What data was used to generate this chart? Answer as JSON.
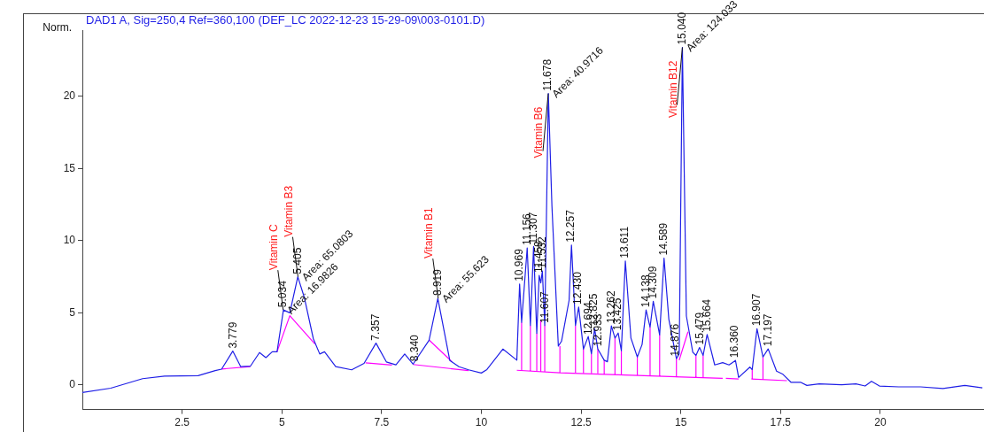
{
  "chart_data": {
    "type": "line",
    "subtitle": "DAD1 A, Sig=250,4 Ref=360,100 (DEF_LC 2022-12-23 15-29-09\\003-0101.D)",
    "ylabel": "Norm.",
    "xlim": [
      0,
      22.6
    ],
    "ylim": [
      -1.7,
      24.6
    ],
    "xticks": [
      {
        "value": 2.5,
        "label": "2.5"
      },
      5,
      {
        "value": 7.5,
        "label": "7.5"
      },
      10,
      {
        "value": 12.5,
        "label": "12.5"
      },
      15,
      {
        "value": 17.5,
        "label": "17.5"
      },
      20
    ],
    "yticks": [
      0,
      5,
      10,
      15,
      20
    ],
    "grid": false,
    "legend": false,
    "marker": "none",
    "series": [
      {
        "color": "#1f1fe6",
        "x": [
          0,
          0.71,
          1.51,
          2.06,
          2.9,
          3.33,
          3.49,
          3.77,
          3.97,
          4.21,
          4.44,
          4.6,
          4.76,
          4.88,
          5.04,
          5.2,
          5.4,
          5.56,
          5.79,
          5.95,
          6.07,
          6.35,
          6.75,
          7.06,
          7.36,
          7.62,
          7.86,
          8.08,
          8.29,
          8.69,
          8.91,
          9.21,
          9.44,
          9.68,
          10.0,
          10.14,
          10.54,
          10.89,
          10.96,
          11.01,
          11.15,
          11.23,
          11.31,
          11.39,
          11.45,
          11.49,
          11.53,
          11.59,
          11.68,
          11.77,
          11.93,
          12.01,
          12.2,
          12.26,
          12.36,
          12.44,
          12.56,
          12.68,
          12.76,
          12.84,
          12.92,
          13.08,
          13.16,
          13.26,
          13.35,
          13.43,
          13.51,
          13.61,
          13.75,
          13.91,
          14.03,
          14.13,
          14.23,
          14.31,
          14.47,
          14.58,
          14.7,
          14.89,
          14.96,
          15.04,
          15.14,
          15.3,
          15.38,
          15.47,
          15.56,
          15.66,
          15.85,
          16.05,
          16.21,
          16.37,
          16.45,
          16.73,
          16.79,
          16.91,
          17.06,
          17.19,
          17.4,
          17.56,
          17.76,
          18.0,
          18.16,
          18.47,
          19.03,
          19.39,
          19.62,
          19.78,
          19.98,
          20.46,
          21.01,
          21.57,
          22.12,
          22.56
        ],
        "values": [
          -0.52,
          -0.22,
          0.44,
          0.61,
          0.65,
          1.0,
          1.1,
          2.35,
          1.27,
          1.3,
          2.25,
          1.9,
          2.3,
          2.3,
          5.2,
          5.0,
          7.5,
          6.1,
          3.2,
          2.15,
          2.3,
          1.27,
          1.05,
          1.5,
          2.9,
          1.6,
          1.4,
          2.15,
          1.45,
          3.1,
          6.0,
          1.7,
          1.27,
          1.05,
          0.83,
          1.07,
          2.49,
          1.72,
          7.0,
          4.34,
          9.5,
          4.12,
          9.6,
          3.58,
          7.6,
          7.07,
          7.9,
          4.12,
          20.2,
          12.4,
          2.7,
          3.03,
          5.87,
          9.7,
          4.12,
          5.4,
          2.49,
          3.36,
          2.16,
          3.9,
          2.49,
          1.72,
          1.61,
          4.1,
          3.25,
          3.6,
          2.38,
          8.6,
          3.25,
          1.94,
          2.81,
          5.2,
          4.01,
          5.8,
          3.47,
          8.8,
          4.56,
          1.83,
          2.16,
          23.4,
          4.78,
          2.27,
          2.05,
          2.6,
          2.05,
          3.5,
          1.39,
          1.55,
          1.39,
          1.7,
          0.52,
          1.24,
          1.07,
          3.9,
          1.94,
          2.5,
          0.96,
          0.74,
          0.19,
          0.19,
          -0.03,
          0.08,
          0.02,
          0.08,
          -0.07,
          0.26,
          -0.07,
          -0.13,
          -0.13,
          -0.24,
          -0.03,
          -0.2
        ]
      },
      {
        "color": "#ff00ff",
        "x": [
          3.49,
          4.21,
          null,
          4.88,
          5.2,
          5.83,
          null,
          7.1,
          7.76,
          null,
          8.29,
          9.68,
          null,
          8.69,
          9.27,
          null,
          10.89,
          11.97,
          16.05,
          null,
          16.13,
          16.45,
          null,
          16.77,
          17.66,
          null,
          14.96,
          15.18,
          null,
          11.01,
          11.01,
          null,
          11.23,
          11.23,
          null,
          11.39,
          11.39,
          null,
          11.49,
          11.49,
          null,
          11.59,
          11.59,
          null,
          11.97,
          11.97,
          null,
          12.36,
          12.36,
          null,
          12.56,
          12.56,
          null,
          12.76,
          12.76,
          null,
          12.92,
          12.92,
          null,
          13.08,
          13.08,
          null,
          13.35,
          13.35,
          null,
          13.51,
          13.51,
          null,
          13.91,
          13.91,
          null,
          14.23,
          14.23,
          null,
          14.47,
          14.47,
          null,
          14.89,
          14.89,
          null,
          15.38,
          15.38,
          null,
          15.56,
          15.56,
          null,
          16.79,
          16.79,
          null,
          17.06,
          17.06
        ],
        "values": [
          1.11,
          1.27,
          null,
          2.3,
          4.8,
          2.84,
          null,
          1.53,
          1.38,
          null,
          1.42,
          1.0,
          null,
          3.12,
          1.59,
          null,
          1.02,
          0.85,
          0.46,
          null,
          0.46,
          0.41,
          null,
          0.41,
          0.3,
          null,
          1.72,
          3.69,
          null,
          1.01,
          4.34,
          null,
          0.98,
          4.12,
          null,
          0.97,
          3.58,
          null,
          0.96,
          4.5,
          null,
          0.94,
          4.12,
          null,
          0.85,
          2.7,
          null,
          0.86,
          4.12,
          null,
          0.84,
          2.49,
          null,
          0.82,
          2.16,
          null,
          0.8,
          2.49,
          null,
          0.78,
          1.72,
          null,
          0.75,
          3.25,
          null,
          0.73,
          2.38,
          null,
          0.69,
          1.94,
          null,
          0.65,
          4.01,
          null,
          0.63,
          3.47,
          null,
          0.58,
          1.83,
          null,
          0.53,
          2.05,
          null,
          0.51,
          2.05,
          null,
          0.4,
          1.07,
          null,
          0.37,
          1.94
        ]
      }
    ],
    "annotations": [
      {
        "text": "3.779",
        "x": 3.779,
        "y": 2.35
      },
      {
        "text": "5.034",
        "x": 5.034,
        "y": 5.2
      },
      {
        "text": "5.405",
        "x": 5.405,
        "y": 7.5
      },
      {
        "text": "7.357",
        "x": 7.357,
        "y": 2.9
      },
      {
        "text": "8.340",
        "x": 8.34,
        "y": 1.45
      },
      {
        "text": "8.919",
        "x": 8.919,
        "y": 6.0
      },
      {
        "text": "10.969",
        "x": 10.969,
        "y": 7.0
      },
      {
        "text": "11.156",
        "x": 11.156,
        "y": 9.5
      },
      {
        "text": "11.307",
        "x": 11.307,
        "y": 9.6
      },
      {
        "text": "11.458",
        "x": 11.458,
        "y": 7.6
      },
      {
        "text": "11.532",
        "x": 11.532,
        "y": 7.9
      },
      {
        "text": "11.607",
        "x": 11.607,
        "y": 4.1
      },
      {
        "text": "11.678",
        "x": 11.678,
        "y": 20.2
      },
      {
        "text": "12.257",
        "x": 12.257,
        "y": 9.7
      },
      {
        "text": "12.430",
        "x": 12.43,
        "y": 5.4
      },
      {
        "text": "12.694",
        "x": 12.694,
        "y": 3.3
      },
      {
        "text": "12.825",
        "x": 12.825,
        "y": 3.9
      },
      {
        "text": "12.933",
        "x": 12.933,
        "y": 2.5
      },
      {
        "text": "13.262",
        "x": 13.262,
        "y": 4.1
      },
      {
        "text": "13.425",
        "x": 13.425,
        "y": 3.6
      },
      {
        "text": "13.611",
        "x": 13.611,
        "y": 8.6
      },
      {
        "text": "14.138",
        "x": 14.138,
        "y": 5.2
      },
      {
        "text": "14.309",
        "x": 14.309,
        "y": 5.8
      },
      {
        "text": "14.589",
        "x": 14.589,
        "y": 8.8
      },
      {
        "text": "14.876",
        "x": 14.876,
        "y": 1.8
      },
      {
        "text": "15.040",
        "x": 15.04,
        "y": 23.4
      },
      {
        "text": "15.479",
        "x": 15.479,
        "y": 2.6
      },
      {
        "text": "15.664",
        "x": 15.664,
        "y": 3.5
      },
      {
        "text": "16.360",
        "x": 16.36,
        "y": 1.7
      },
      {
        "text": "16.907",
        "x": 16.907,
        "y": 3.9
      },
      {
        "text": "17.197",
        "x": 17.197,
        "y": 2.5
      },
      {
        "text": "Vitamin C",
        "x": 5.034,
        "y": 5.2
      },
      {
        "text": "Vitamin B3",
        "x": 5.405,
        "y": 7.5
      },
      {
        "text": "Vitamin B1",
        "x": 8.919,
        "y": 6.0
      },
      {
        "text": "Vitamin B6",
        "x": 11.678,
        "y": 20.2
      },
      {
        "text": "Vitamin B12",
        "x": 15.04,
        "y": 23.4
      },
      {
        "text": "Area: 65.0803",
        "x": 5.405,
        "y": 7.5
      },
      {
        "text": "Area: 16.9826",
        "x": 5.034,
        "y": 5.2
      },
      {
        "text": "Area: 55.623",
        "x": 8.919,
        "y": 6.0
      },
      {
        "text": "Area: 40.9716",
        "x": 11.678,
        "y": 20.2
      },
      {
        "text": "Area: 124.033",
        "x": 15.04,
        "y": 23.4
      }
    ]
  }
}
